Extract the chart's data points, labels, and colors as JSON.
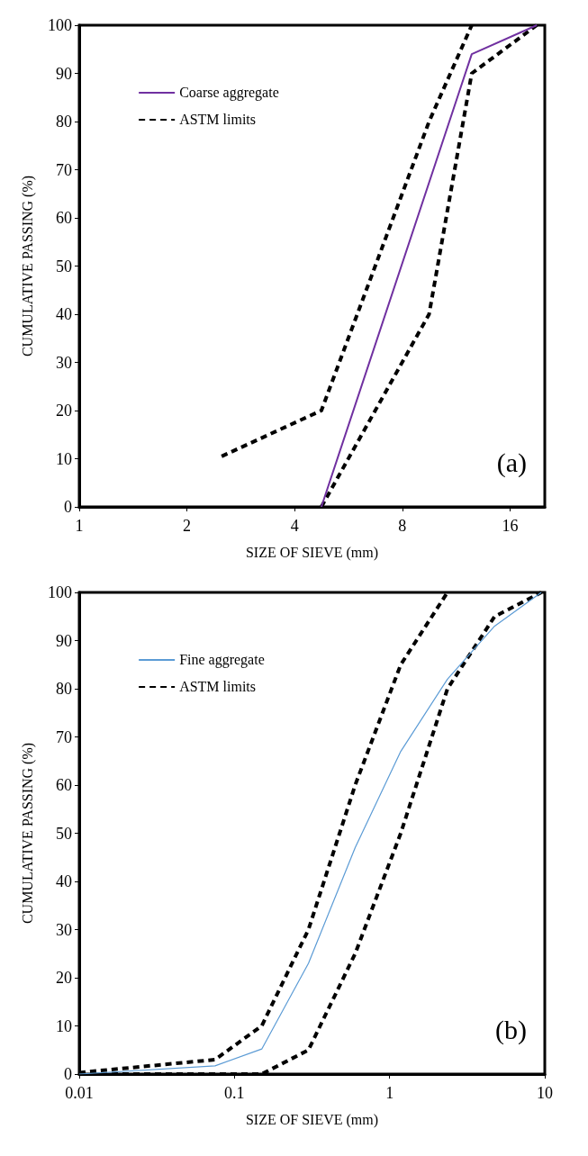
{
  "chart_data": [
    {
      "type": "line",
      "xlabel": "SIZE OF SIEVE (mm)",
      "ylabel": "CUMULATIVE PASSING (%)",
      "log": "x",
      "xlim": [
        1,
        20
      ],
      "xticks": [
        1,
        2,
        4,
        8,
        16
      ],
      "ylim": [
        0,
        100
      ],
      "yticks": [
        0,
        10,
        20,
        30,
        40,
        50,
        60,
        70,
        80,
        90,
        100
      ],
      "grid": false,
      "legend": "top left",
      "marker": "none",
      "annotations": [
        "(a)"
      ],
      "series": [
        {
          "name": "Coarse aggregate",
          "color": "#7030a0",
          "line_style": "solid",
          "x": [
            4.75,
            12.5,
            19
          ],
          "values": [
            0,
            94,
            100
          ]
        },
        {
          "name": "ASTM limits",
          "color": "#000000",
          "line_style": "dashed",
          "x": [
            2.5,
            4.75,
            9.5,
            12.5
          ],
          "values": [
            10.5,
            20,
            80,
            100
          ]
        },
        {
          "color": "#000000",
          "line_style": "dashed",
          "x": [
            4.75,
            9.5,
            12.5,
            19
          ],
          "values": [
            0,
            40,
            90,
            100
          ]
        }
      ]
    },
    {
      "type": "line",
      "xlabel": "SIZE OF SIEVE (mm)",
      "ylabel": "CUMULATIVE PASSING (%)",
      "log": "x",
      "xlim": [
        0.01,
        10
      ],
      "xticks": [
        0.01,
        0.1,
        1,
        10
      ],
      "ylim": [
        0,
        100
      ],
      "yticks": [
        0,
        10,
        20,
        30,
        40,
        50,
        60,
        70,
        80,
        90,
        100
      ],
      "grid": false,
      "legend": "top left",
      "marker": "none",
      "annotations": [
        "(b)"
      ],
      "series": [
        {
          "name": "Fine aggregate",
          "color": "#5b9bd5",
          "line_style": "solid",
          "x": [
            0.01,
            0.075,
            0.15,
            0.3,
            0.6,
            1.18,
            2.36,
            4.75,
            9.5
          ],
          "values": [
            0,
            1.7,
            5.2,
            23,
            47,
            67,
            82,
            93,
            100
          ]
        },
        {
          "name": "ASTM limits",
          "color": "#000000",
          "line_style": "dashed",
          "x": [
            0.01,
            0.075,
            0.15,
            0.3,
            0.6,
            1.18,
            2.36
          ],
          "values": [
            0.3,
            3,
            10,
            30,
            60,
            85,
            100
          ]
        },
        {
          "color": "#000000",
          "line_style": "dashed",
          "x": [
            0.01,
            0.075,
            0.15,
            0.3,
            0.6,
            1.18,
            2.36,
            4.75,
            9.5
          ],
          "values": [
            0,
            0,
            0,
            5,
            25,
            50,
            80,
            95,
            100
          ]
        }
      ]
    }
  ]
}
